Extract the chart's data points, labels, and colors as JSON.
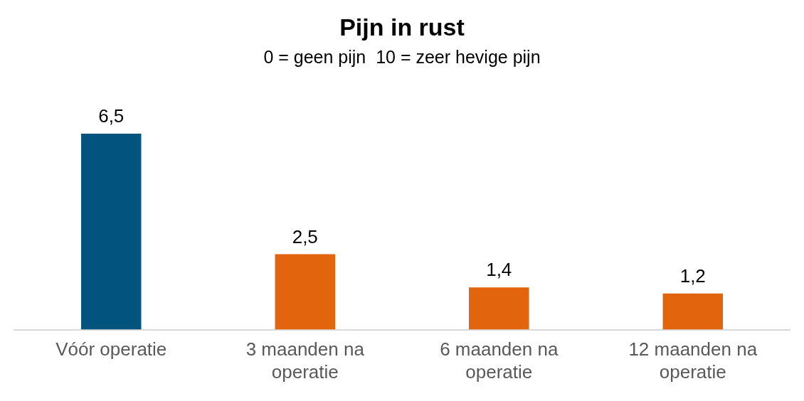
{
  "chart_data": {
    "type": "bar",
    "title": "Pijn in rust",
    "subtitle": "0 = geen pijn  10 = zeer hevige pijn",
    "categories": [
      "Vóór operatie",
      "3 maanden na operatie",
      "6 maanden na operatie",
      "12 maanden na operatie"
    ],
    "values": [
      6.5,
      2.5,
      1.4,
      1.2
    ],
    "colors": [
      "#02547e",
      "#e2640c",
      "#e2640c",
      "#e2640c"
    ],
    "value_labels": [
      "6,5",
      "2,5",
      "1,4",
      "1,2"
    ],
    "grid": false,
    "legend": false
  }
}
